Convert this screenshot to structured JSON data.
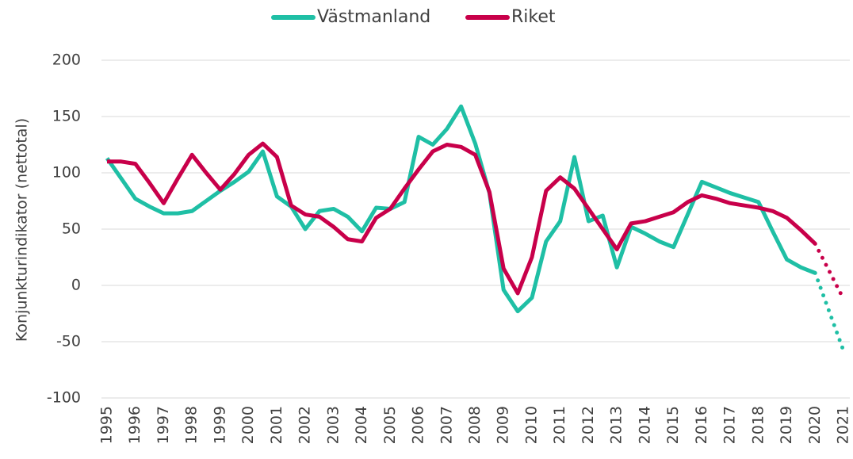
{
  "chart_data": {
    "type": "line",
    "y_axis_label": "Konjunkturindikator (nettotal)",
    "x": [
      1995,
      1995.5,
      1996,
      1996.5,
      1997,
      1997.5,
      1998,
      1998.5,
      1999,
      1999.5,
      2000,
      2000.5,
      2001,
      2001.5,
      2002,
      2002.5,
      2003,
      2003.5,
      2004,
      2004.5,
      2005,
      2005.5,
      2006,
      2006.5,
      2007,
      2007.5,
      2008,
      2008.5,
      2009,
      2009.5,
      2010,
      2010.5,
      2011,
      2011.5,
      2012,
      2012.5,
      2013,
      2013.5,
      2014,
      2014.5,
      2015,
      2015.5,
      2016,
      2016.5,
      2017,
      2017.5,
      2018,
      2018.5,
      2019,
      2019.5,
      2020,
      2021
    ],
    "series": [
      {
        "name": "Västmanland",
        "color": "#1fbfa5",
        "forecast_from": 2020,
        "values": [
          113,
          95,
          77,
          70,
          64,
          64,
          66,
          75,
          84,
          92,
          101,
          119,
          79,
          70,
          50,
          66,
          68,
          61,
          48,
          69,
          68,
          74,
          132,
          125,
          139,
          159,
          126,
          82,
          -4,
          -23,
          -11,
          39,
          57,
          114,
          57,
          62,
          16,
          52,
          46,
          39,
          34,
          63,
          92,
          87,
          82,
          78,
          74,
          48,
          23,
          16,
          11,
          -58
        ]
      },
      {
        "name": "Riket",
        "color": "#c8004a",
        "forecast_from": 2020,
        "values": [
          110,
          110,
          108,
          91,
          73,
          95,
          116,
          100,
          85,
          99,
          116,
          126,
          114,
          71,
          63,
          61,
          52,
          41,
          39,
          60,
          68,
          86,
          103,
          119,
          125,
          123,
          116,
          83,
          15,
          -7,
          25,
          84,
          96,
          86,
          68,
          50,
          32,
          55,
          57,
          61,
          65,
          74,
          80,
          77,
          73,
          71,
          69,
          66,
          60,
          49,
          37,
          -12
        ]
      }
    ],
    "xlim": [
      1995,
      2021
    ],
    "xticks": [
      1995,
      1996,
      1997,
      1998,
      1999,
      2000,
      2001,
      2002,
      2003,
      2004,
      2005,
      2006,
      2007,
      2008,
      2009,
      2010,
      2011,
      2012,
      2013,
      2014,
      2015,
      2016,
      2017,
      2018,
      2019,
      2020,
      2021
    ],
    "ylim": [
      -100,
      200
    ],
    "yticks": [
      -100,
      -50,
      0,
      50,
      100,
      150,
      200
    ],
    "grid": true,
    "legend": "top"
  }
}
